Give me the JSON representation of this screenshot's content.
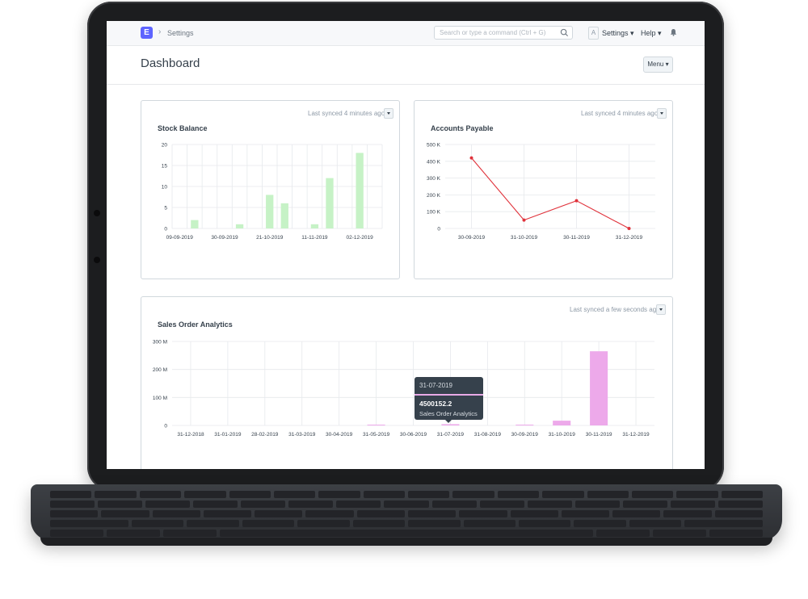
{
  "navbar": {
    "logo_letter": "E",
    "breadcrumb": "Settings",
    "search_placeholder": "Search or type a command (Ctrl + G)",
    "avatar_letter": "A",
    "settings_label": "Settings",
    "help_label": "Help"
  },
  "page": {
    "title": "Dashboard",
    "menu_label": "Menu"
  },
  "cards": {
    "stock": {
      "title": "Stock Balance",
      "sync": "Last synced 4 minutes ago"
    },
    "payable": {
      "title": "Accounts Payable",
      "sync": "Last synced 4 minutes ago"
    },
    "sales": {
      "title": "Sales Order Analytics",
      "sync": "Last synced a few seconds ago"
    }
  },
  "tooltip": {
    "date": "31-07-2019",
    "value": "4500152.2",
    "series": "Sales Order Analytics"
  },
  "colors": {
    "stock_bar": "#c6f2c6",
    "payable_line": "#e0323b",
    "sales_bar": "#eda9ea",
    "accent": "#5e64ff"
  },
  "chart_data": [
    {
      "type": "bar",
      "ylim": [
        0,
        20
      ],
      "yticks": [
        "20",
        "15",
        "10",
        "5",
        "0"
      ],
      "x_tick_labels": [
        "09-09-2019",
        "30-09-2019",
        "21-10-2019",
        "11-11-2019",
        "02-12-2019"
      ],
      "values": [
        0,
        2,
        0,
        0,
        1,
        0,
        8,
        6,
        0,
        1,
        12,
        0,
        18,
        0
      ],
      "grid": true
    },
    {
      "type": "line",
      "ylim": [
        0,
        500
      ],
      "yticks": [
        "500 K",
        "400 K",
        "300 K",
        "200 K",
        "100 K",
        "0"
      ],
      "categories": [
        "30-09-2019",
        "31-10-2019",
        "30-11-2019",
        "31-12-2019"
      ],
      "values": [
        420,
        50,
        165,
        0
      ],
      "grid": true
    },
    {
      "type": "bar",
      "ylim": [
        0,
        300
      ],
      "yticks": [
        "300 M",
        "200 M",
        "100 M",
        "0"
      ],
      "categories": [
        "31-12-2018",
        "31-01-2019",
        "28-02-2019",
        "31-03-2019",
        "30-04-2019",
        "31-05-2019",
        "30-06-2019",
        "31-07-2019",
        "31-08-2019",
        "30-09-2019",
        "31-10-2019",
        "30-11-2019",
        "31-12-2019"
      ],
      "values": [
        0,
        0,
        0,
        0,
        0,
        2,
        0,
        4.5,
        0,
        1,
        17,
        265,
        0
      ],
      "grid": true
    }
  ]
}
